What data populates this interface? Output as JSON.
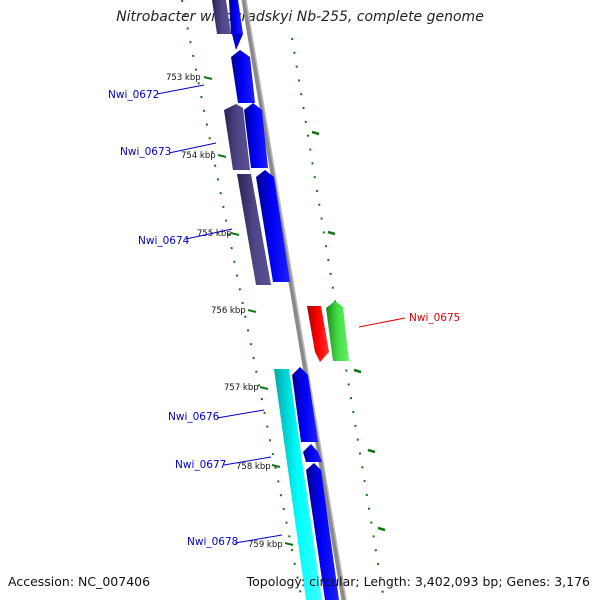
{
  "title": "Nitrobacter winogradskyi Nb-255, complete genome",
  "footer": {
    "accession": "Accession: NC_007406",
    "topology": "Topology: circular; Length: 3,402,093 bp; Genes: 3,176"
  },
  "colors": {
    "forward_gene": "#0000ee",
    "reverse_gene": "#48407a",
    "highlight_gene": "#ee0000",
    "highlight_partner": "#33cc33",
    "cyan_gene": "#00eeee",
    "label_blue": "#0000cc",
    "label_red": "#dd0000",
    "tick": "#117711",
    "backbone": "#888888"
  },
  "ticks": [
    {
      "label": "753 kbp"
    },
    {
      "label": "754 kbp"
    },
    {
      "label": "755 kbp"
    },
    {
      "label": "756 kbp"
    },
    {
      "label": "757 kbp"
    },
    {
      "label": "758 kbp"
    },
    {
      "label": "759 kbp"
    }
  ],
  "genes": [
    {
      "name": "Nwi_0672"
    },
    {
      "name": "Nwi_0673"
    },
    {
      "name": "Nwi_0674"
    },
    {
      "name": "Nwi_0675"
    },
    {
      "name": "Nwi_0676"
    },
    {
      "name": "Nwi_0677"
    },
    {
      "name": "Nwi_0678"
    }
  ]
}
